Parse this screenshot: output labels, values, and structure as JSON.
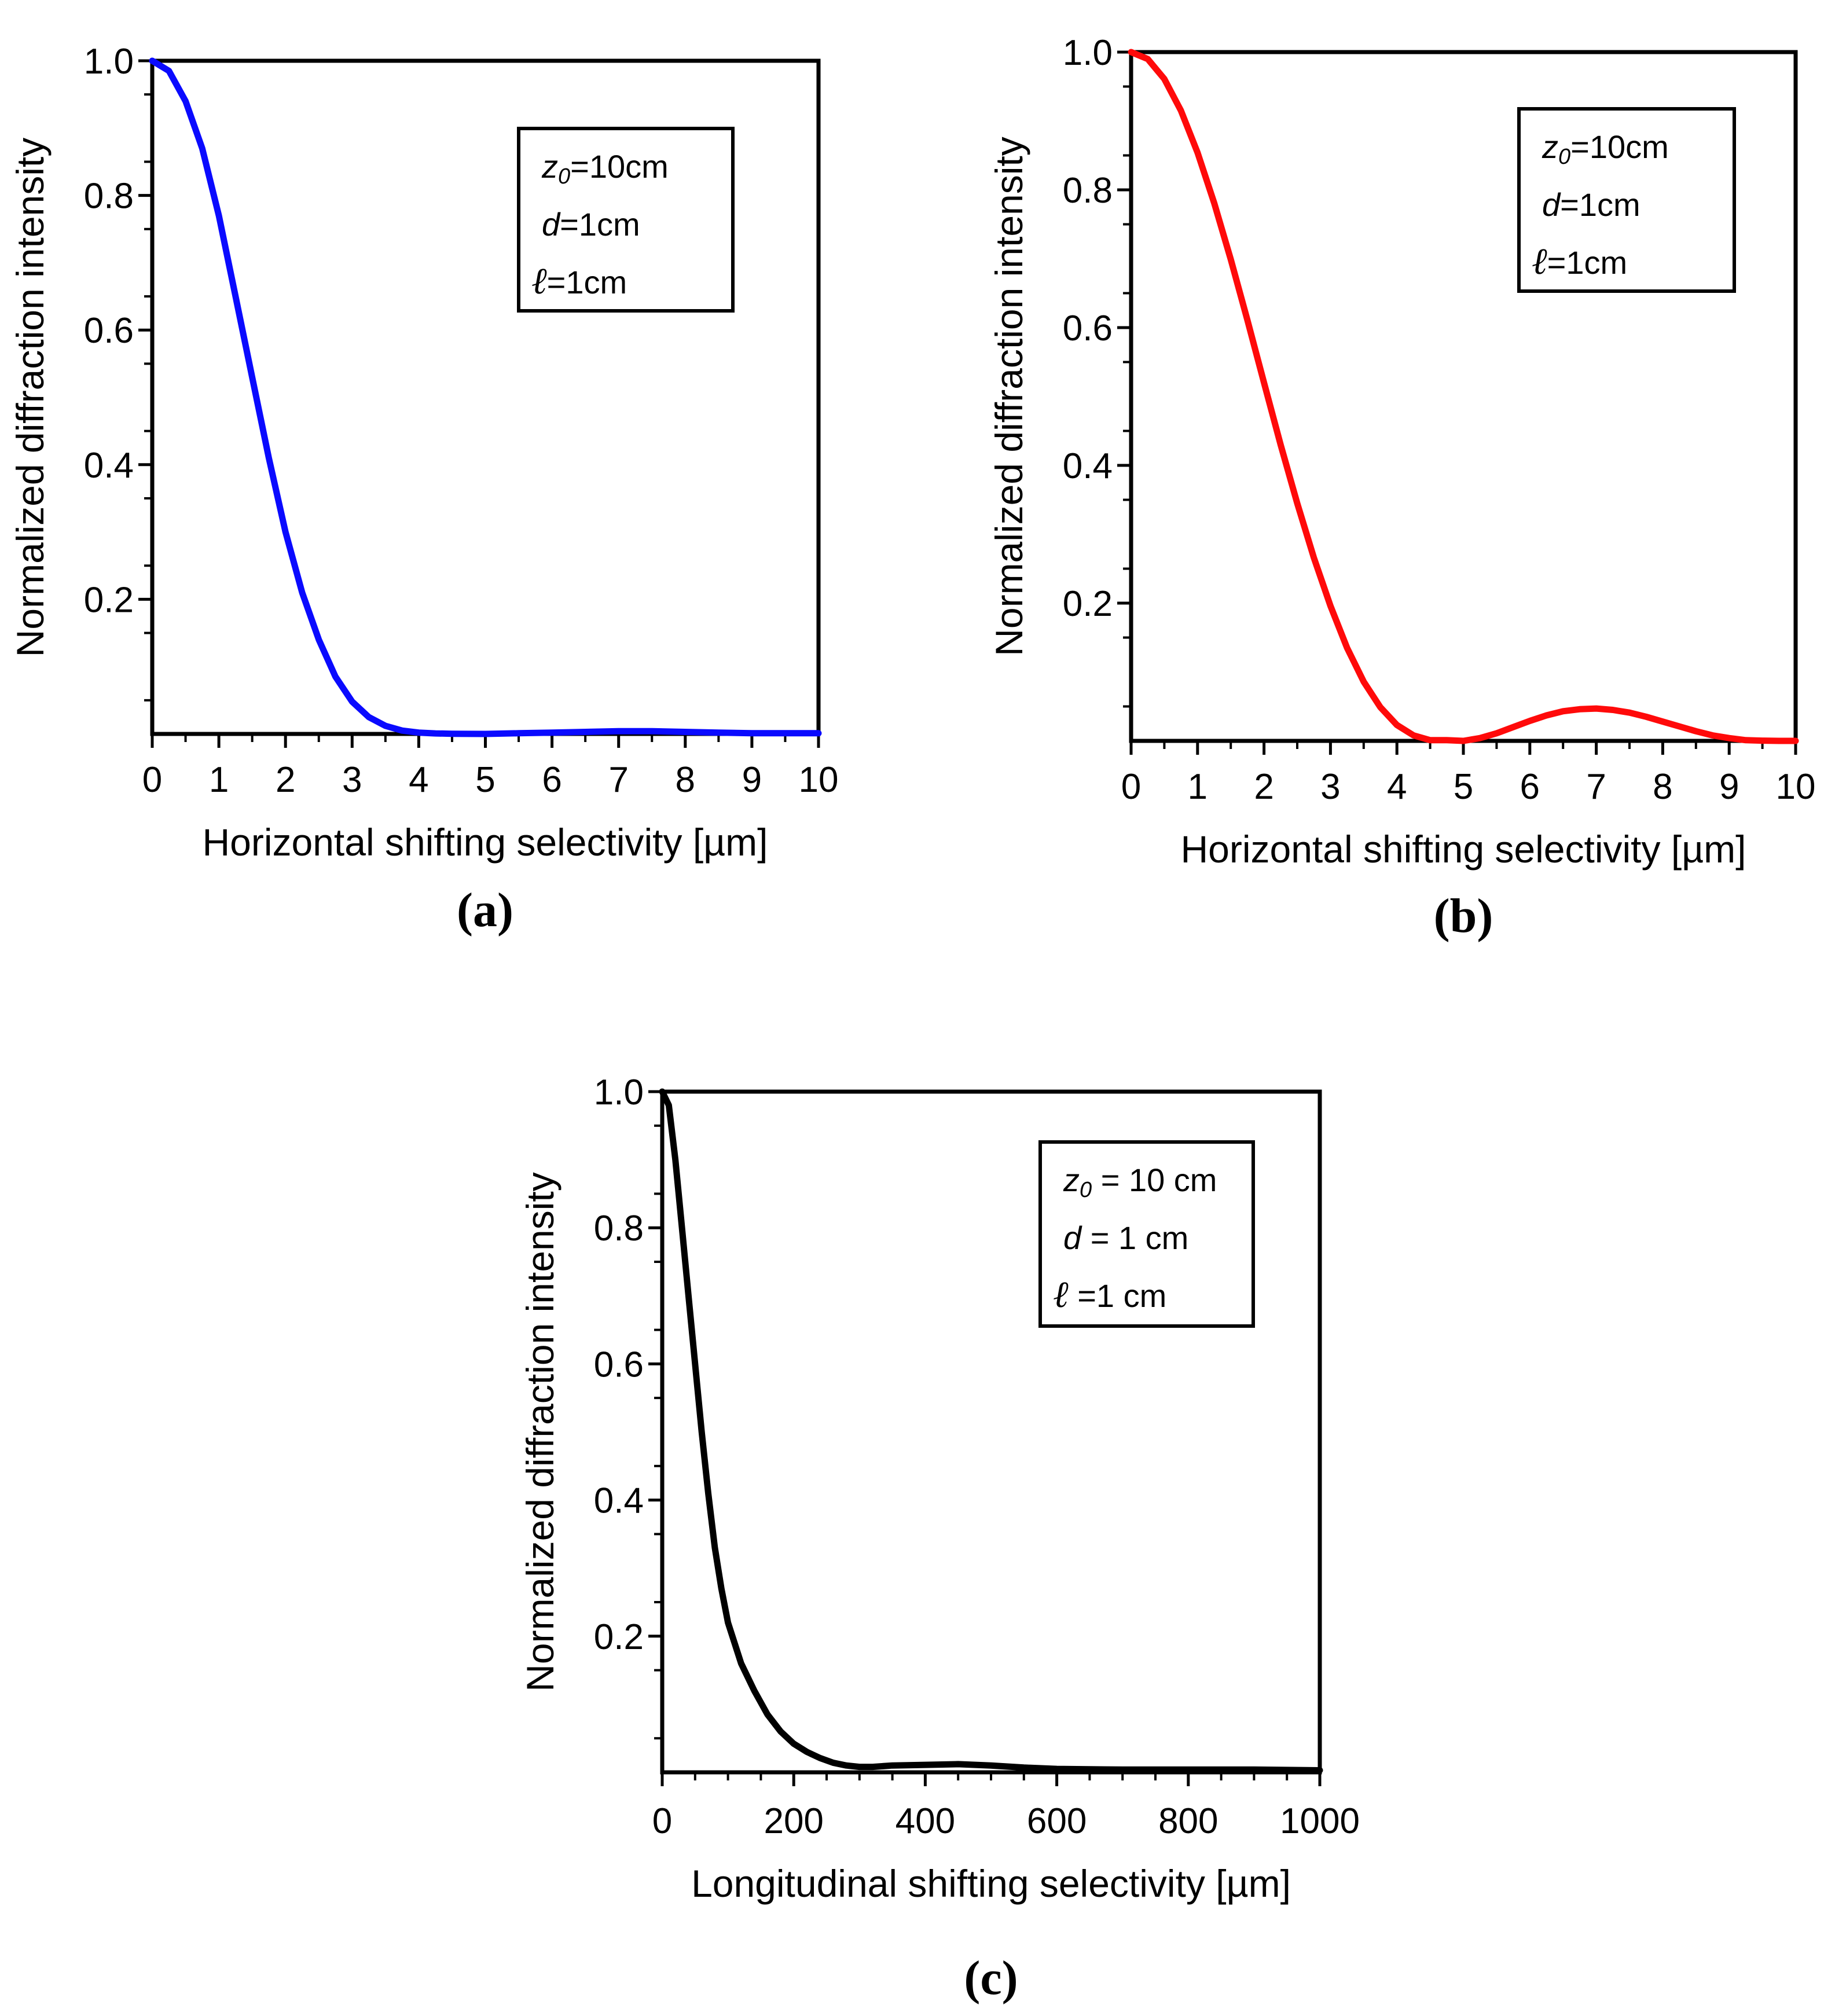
{
  "chart_data": [
    {
      "type": "line",
      "panel_label": "(a)",
      "xlabel": "Horizontal shifting selectivity [µm]",
      "ylabel": "Normalized diffraction intensity",
      "xlim": [
        0,
        10
      ],
      "ylim": [
        0,
        1.0
      ],
      "xticks": [
        "0",
        "1",
        "2",
        "3",
        "4",
        "5",
        "6",
        "7",
        "8",
        "9",
        "10"
      ],
      "yticks": [
        "0.2",
        "0.4",
        "0.6",
        "0.8",
        "1.0"
      ],
      "grid": false,
      "legend_position": "top-right",
      "legend": {
        "z0_var": "z",
        "z0_sub": "0",
        "z0_rest": "=10cm",
        "d_var": "d",
        "d_rest": "=1cm",
        "l_symbol": "ℓ",
        "l_rest": "=1cm"
      },
      "series": [
        {
          "name": "intensity",
          "color": "#0a0aff",
          "x": [
            0,
            0.25,
            0.5,
            0.75,
            1.0,
            1.25,
            1.5,
            1.75,
            2.0,
            2.25,
            2.5,
            2.75,
            3.0,
            3.25,
            3.5,
            3.75,
            4.0,
            4.25,
            4.5,
            4.75,
            5.0,
            5.5,
            6.0,
            6.5,
            7.0,
            7.5,
            8.0,
            8.5,
            9.0,
            9.5,
            10.0
          ],
          "y": [
            1.0,
            0.985,
            0.94,
            0.87,
            0.77,
            0.65,
            0.53,
            0.41,
            0.3,
            0.21,
            0.14,
            0.085,
            0.048,
            0.025,
            0.012,
            0.005,
            0.002,
            0.0008,
            0.0003,
            0.0001,
            0.0,
            0.001,
            0.002,
            0.003,
            0.004,
            0.004,
            0.003,
            0.002,
            0.001,
            0.001,
            0.001
          ]
        }
      ]
    },
    {
      "type": "line",
      "panel_label": "(b)",
      "xlabel": "Horizontal shifting selectivity [µm]",
      "ylabel": "Normalized diffraction intensity",
      "xlim": [
        0,
        10
      ],
      "ylim": [
        0,
        1.0
      ],
      "xticks": [
        "0",
        "1",
        "2",
        "3",
        "4",
        "5",
        "6",
        "7",
        "8",
        "9",
        "10"
      ],
      "yticks": [
        "0.2",
        "0.4",
        "0.6",
        "0.8",
        "1.0"
      ],
      "grid": false,
      "legend_position": "top-right",
      "legend": {
        "z0_var": "z",
        "z0_sub": "0",
        "z0_rest": "=10cm",
        "d_var": "d",
        "d_rest": "=1cm",
        "l_symbol": "ℓ",
        "l_rest": "=1cm"
      },
      "series": [
        {
          "name": "intensity",
          "color": "#ff0a0a",
          "x": [
            0,
            0.25,
            0.5,
            0.75,
            1.0,
            1.25,
            1.5,
            1.75,
            2.0,
            2.25,
            2.5,
            2.75,
            3.0,
            3.25,
            3.5,
            3.75,
            4.0,
            4.25,
            4.5,
            4.75,
            5.0,
            5.25,
            5.5,
            5.75,
            6.0,
            6.25,
            6.5,
            6.75,
            7.0,
            7.25,
            7.5,
            7.75,
            8.0,
            8.25,
            8.5,
            8.75,
            9.0,
            9.25,
            9.5,
            9.75,
            10.0
          ],
          "y": [
            1.0,
            0.99,
            0.961,
            0.915,
            0.854,
            0.781,
            0.699,
            0.611,
            0.52,
            0.43,
            0.345,
            0.266,
            0.196,
            0.135,
            0.086,
            0.049,
            0.023,
            0.008,
            0.001,
            0.001,
            0.0,
            0.004,
            0.011,
            0.02,
            0.029,
            0.037,
            0.043,
            0.046,
            0.047,
            0.045,
            0.041,
            0.035,
            0.028,
            0.021,
            0.014,
            0.008,
            0.004,
            0.001,
            0.0003,
            0.0,
            0.0
          ]
        }
      ]
    },
    {
      "type": "line",
      "panel_label": "(c)",
      "xlabel": "Longitudinal shifting selectivity [µm]",
      "ylabel": "Normalized diffraction intensity",
      "xlim": [
        0,
        1000
      ],
      "ylim": [
        0,
        1.0
      ],
      "xticks": [
        "0",
        "200",
        "400",
        "600",
        "800",
        "1000"
      ],
      "yticks": [
        "0.2",
        "0.4",
        "0.6",
        "0.8",
        "1.0"
      ],
      "grid": false,
      "legend_position": "top-right",
      "legend": {
        "z0_var": "z",
        "z0_sub": "0",
        "z0_rest": " = 10 cm",
        "d_var": "d",
        "d_rest": " = 1 cm",
        "l_symbol": "ℓ",
        "l_rest": "  =1 cm"
      },
      "series": [
        {
          "name": "intensity",
          "color": "#000000",
          "x": [
            0,
            10,
            20,
            30,
            40,
            50,
            60,
            70,
            80,
            90,
            100,
            120,
            140,
            160,
            180,
            200,
            220,
            240,
            260,
            280,
            300,
            320,
            350,
            400,
            450,
            500,
            550,
            600,
            700,
            800,
            900,
            1000
          ],
          "y": [
            1.0,
            0.98,
            0.9,
            0.8,
            0.7,
            0.6,
            0.5,
            0.41,
            0.33,
            0.27,
            0.22,
            0.16,
            0.12,
            0.085,
            0.06,
            0.042,
            0.03,
            0.021,
            0.014,
            0.01,
            0.008,
            0.008,
            0.01,
            0.011,
            0.012,
            0.01,
            0.007,
            0.005,
            0.004,
            0.004,
            0.004,
            0.003
          ]
        }
      ]
    }
  ]
}
